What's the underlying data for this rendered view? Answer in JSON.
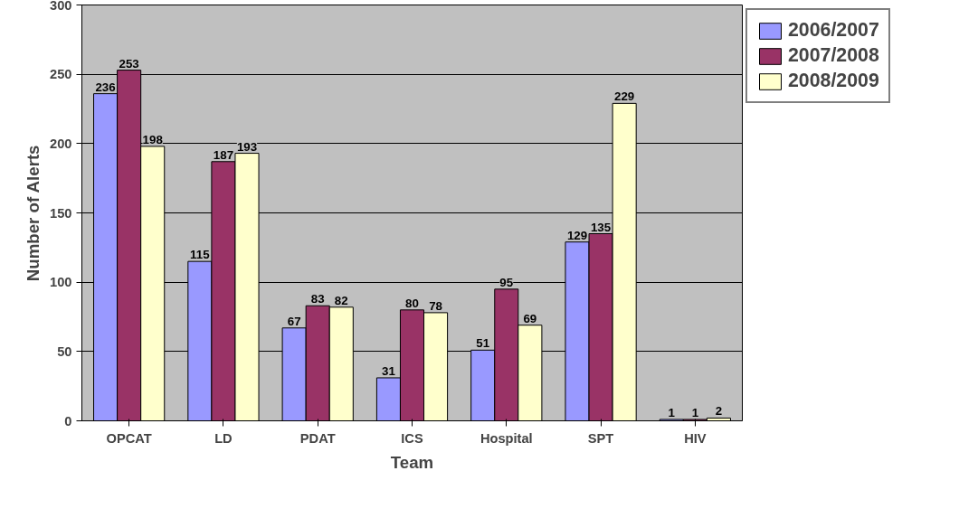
{
  "chart_data": {
    "type": "bar",
    "xlabel": "Team",
    "ylabel": "Number of Alerts",
    "categories": [
      "OPCAT",
      "LD",
      "PDAT",
      "ICS",
      "Hospital",
      "SPT",
      "HIV"
    ],
    "series": [
      {
        "name": "2006/2007",
        "color": "#9999ff",
        "values": [
          236,
          115,
          67,
          31,
          51,
          129,
          1
        ]
      },
      {
        "name": "2007/2008",
        "color": "#993366",
        "values": [
          253,
          187,
          83,
          80,
          95,
          135,
          1
        ]
      },
      {
        "name": "2008/2009",
        "color": "#ffffcc",
        "values": [
          198,
          193,
          82,
          78,
          69,
          229,
          2
        ]
      }
    ],
    "ylim": [
      0,
      300
    ],
    "yticks": [
      0,
      50,
      100,
      150,
      200,
      250,
      300
    ],
    "grid": "y",
    "legend": "top right",
    "data_labels": true
  }
}
